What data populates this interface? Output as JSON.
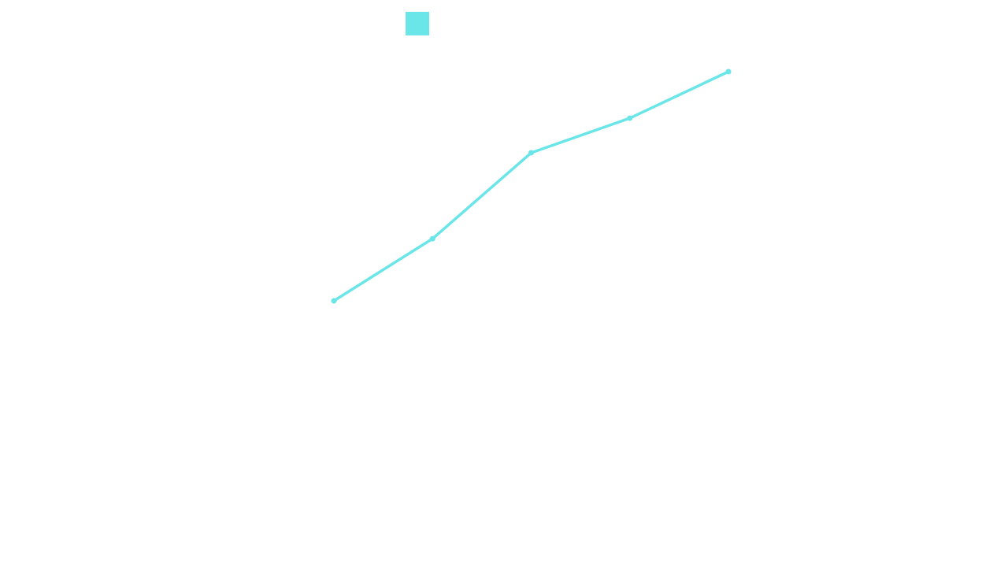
{
  "chart_data": {
    "type": "line",
    "title": "",
    "xlabel": "",
    "ylabel": "",
    "x": [
      1,
      2,
      3,
      4,
      5
    ],
    "series": [
      {
        "values": [
          0,
          27.1,
          64.6,
          79.7,
          100
        ],
        "color": "#6ae5e8"
      }
    ],
    "ylim": [
      0,
      100
    ],
    "grid": false,
    "axes_visible": false,
    "legend": {
      "position": "top",
      "marker": "square"
    }
  }
}
